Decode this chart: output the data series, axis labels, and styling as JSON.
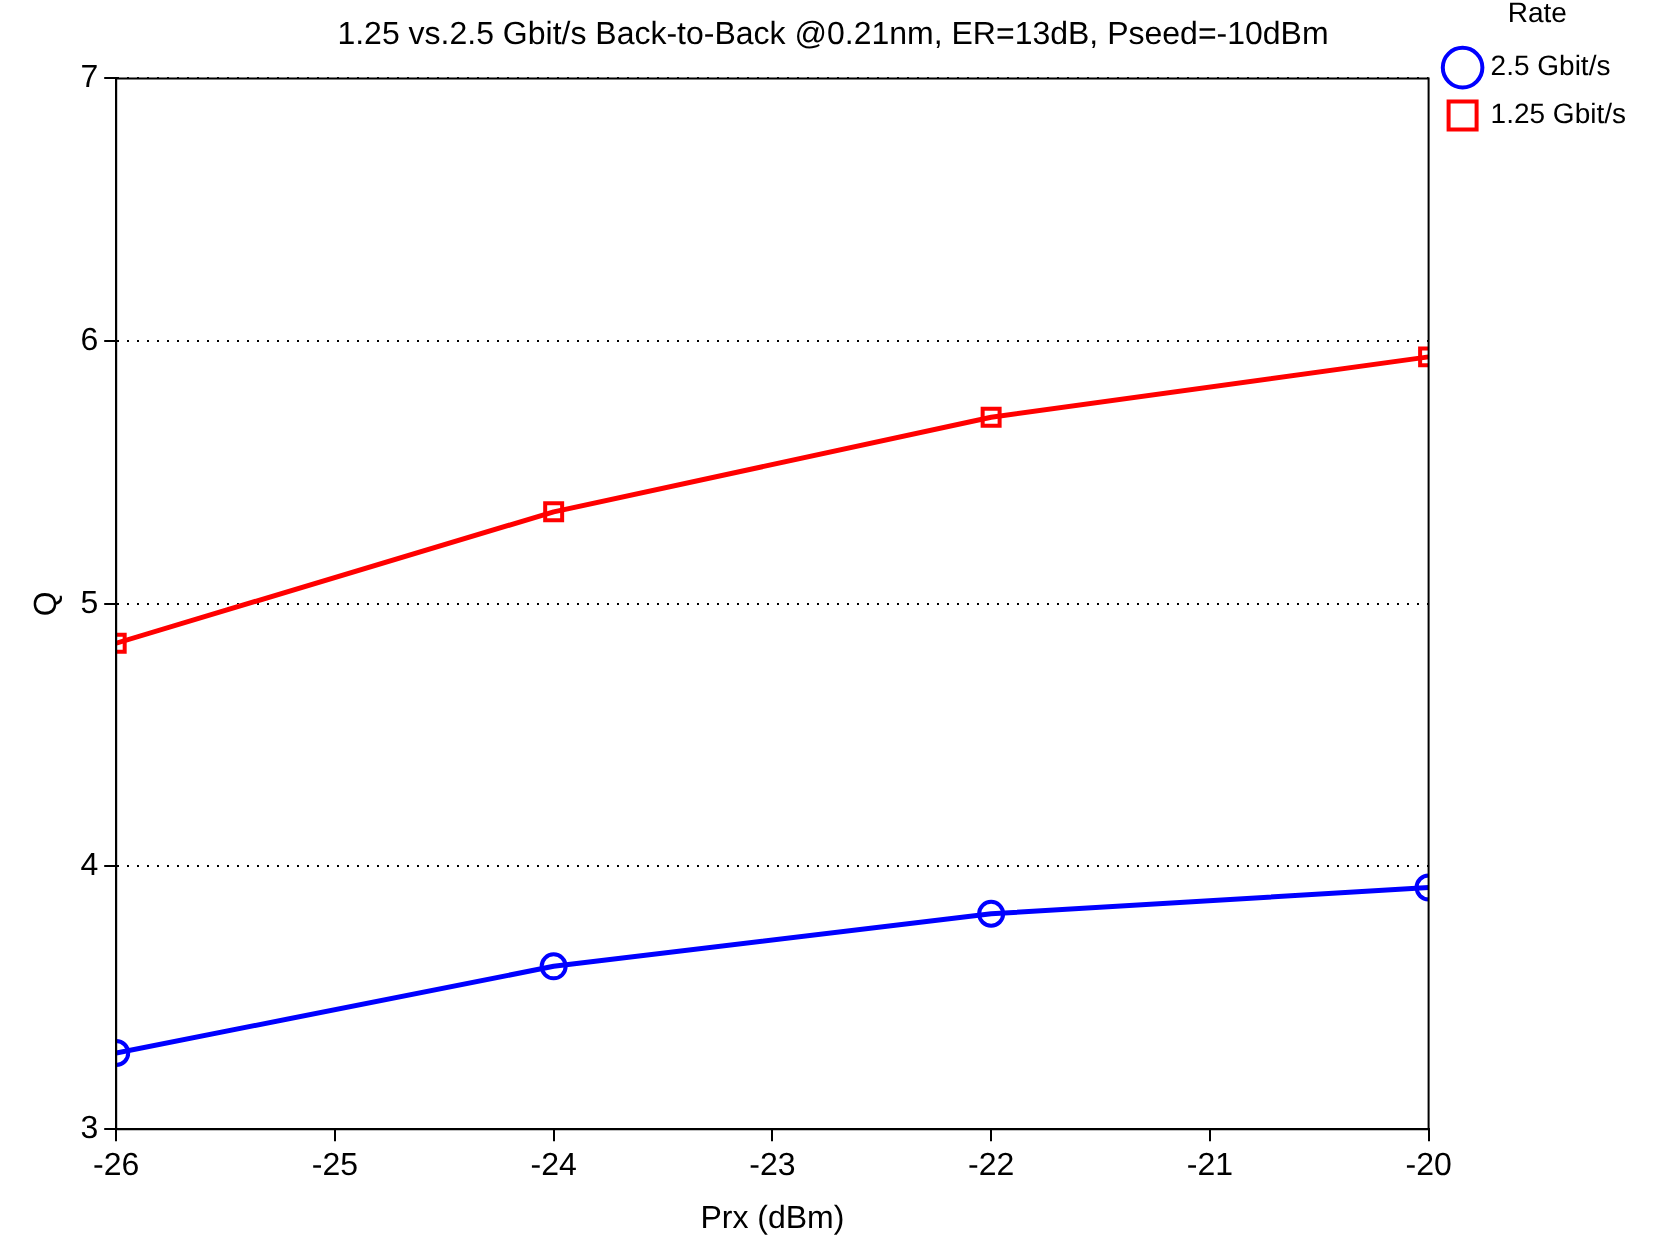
{
  "chart_data": {
    "type": "line",
    "title": "1.25 vs.2.5 Gbit/s Back-to-Back @0.21nm, ER=13dB, Pseed=-10dBm",
    "xlabel": "Prx (dBm)",
    "ylabel": "Q",
    "legend_title": "Rate",
    "legend": "right",
    "grid": "y",
    "line_style": "solid",
    "x": [
      -26,
      -24,
      -22,
      -20
    ],
    "series": [
      {
        "name": "2.5 Gbit/s",
        "color": "#0000ff",
        "marker": "circle",
        "values": [
          3.29,
          3.62,
          3.82,
          3.92
        ]
      },
      {
        "name": "1.25 Gbit/s",
        "color": "#ff0000",
        "marker": "square",
        "values": [
          4.85,
          5.35,
          5.71,
          5.94
        ]
      }
    ],
    "xlim": [
      -26,
      -20
    ],
    "xticks": [
      -26,
      -25,
      -24,
      -23,
      -22,
      -21,
      -20
    ],
    "ylim": [
      3,
      7
    ],
    "yticks": [
      3,
      4,
      5,
      6,
      7
    ]
  }
}
